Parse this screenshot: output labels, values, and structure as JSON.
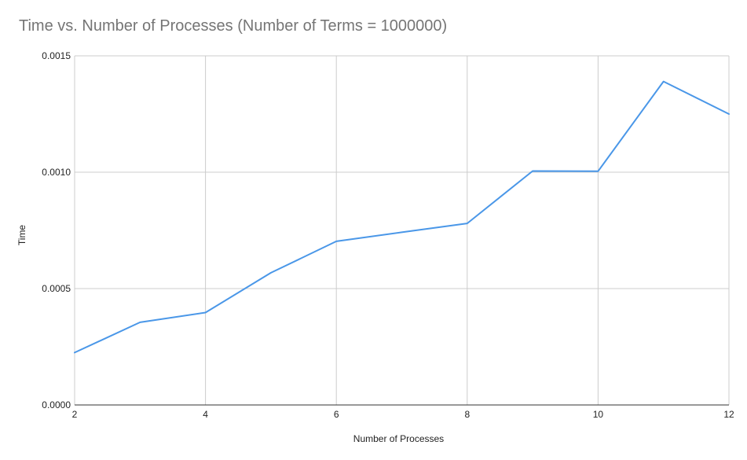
{
  "chart_data": {
    "type": "line",
    "title": "Time vs. Number of Processes (Number of Terms = 1000000)",
    "xlabel": "Number of Processes",
    "ylabel": "Time",
    "x": [
      2,
      3,
      4,
      5,
      6,
      7,
      8,
      9,
      10,
      11,
      12
    ],
    "series": [
      {
        "values": [
          0.000225,
          0.000355,
          0.000397,
          0.000568,
          0.000703,
          0.000742,
          0.00078,
          0.001005,
          0.001004,
          0.00139,
          0.00125
        ]
      }
    ],
    "xlim": [
      2,
      12
    ],
    "ylim": [
      0,
      0.0015
    ],
    "x_ticks": [
      "2",
      "4",
      "6",
      "8",
      "10",
      "12"
    ],
    "y_ticks": [
      "0.0000",
      "0.0005",
      "0.0010",
      "0.0015"
    ],
    "grid": true,
    "colors": {
      "line": "#4a97e8",
      "grid": "#cccccc",
      "axis": "#333333",
      "title": "#757575"
    }
  }
}
